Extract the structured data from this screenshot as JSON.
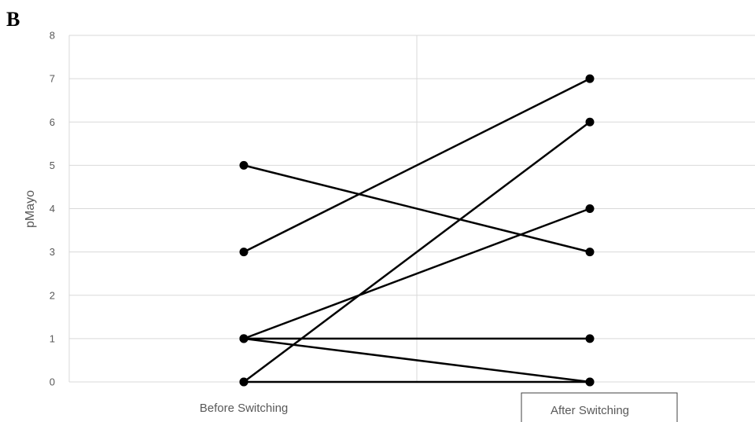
{
  "panel_label": "B",
  "chart_data": {
    "type": "line",
    "categories": [
      "Before Switching",
      "After Switching"
    ],
    "ylabel": "pMayo",
    "xlabel": "",
    "ylim": [
      0,
      8
    ],
    "yticks": [
      0,
      1,
      2,
      3,
      4,
      5,
      6,
      7,
      8
    ],
    "grid": true,
    "series_color": "#000000",
    "series": [
      {
        "values": [
          5,
          3
        ]
      },
      {
        "values": [
          3,
          7
        ]
      },
      {
        "values": [
          0,
          6
        ]
      },
      {
        "values": [
          1,
          4
        ]
      },
      {
        "values": [
          1,
          1
        ]
      },
      {
        "values": [
          1,
          0
        ]
      },
      {
        "values": [
          0,
          0
        ]
      }
    ]
  }
}
